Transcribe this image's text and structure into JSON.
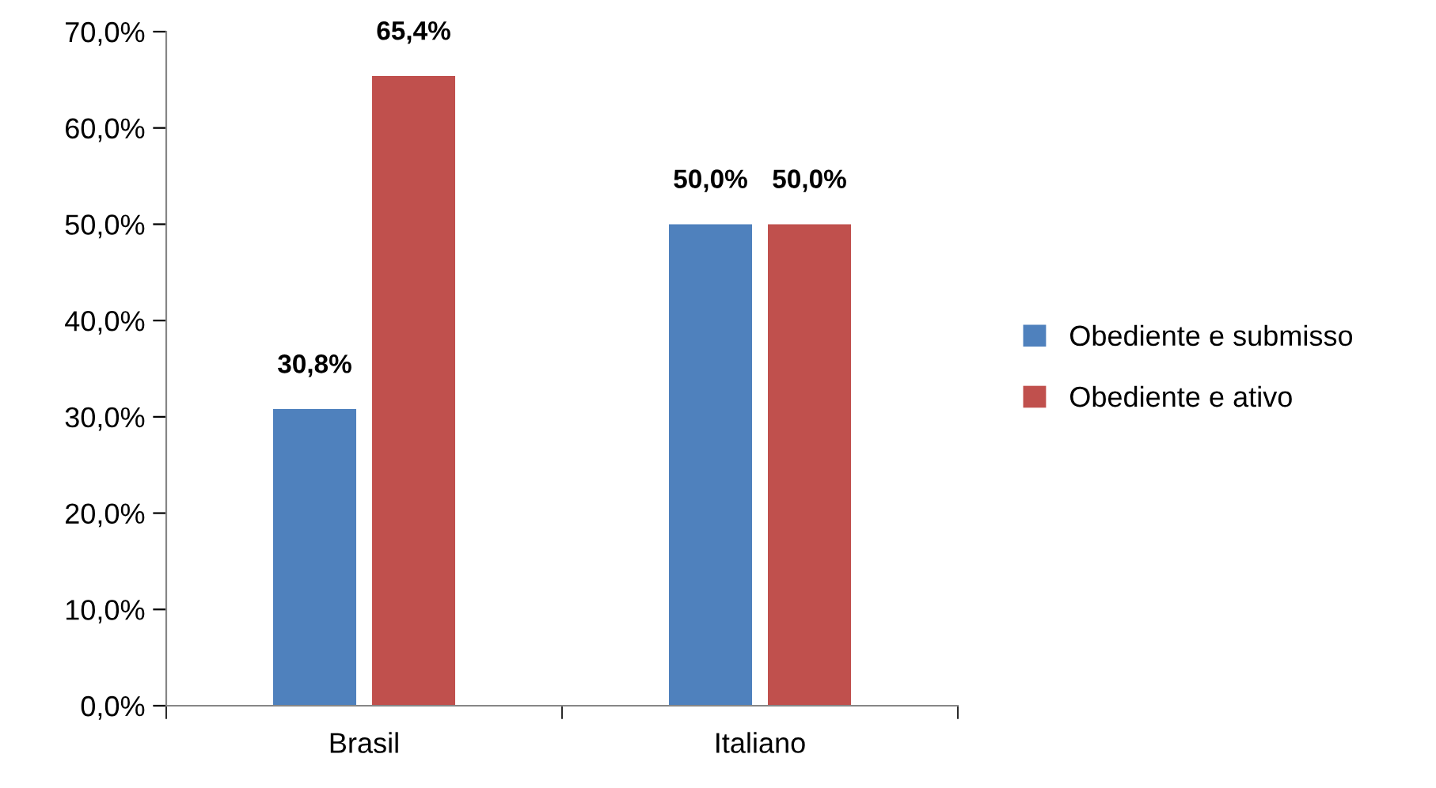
{
  "chart_data": {
    "type": "bar",
    "categories": [
      "Brasil",
      "Italiano"
    ],
    "series": [
      {
        "name": "Obediente e submisso",
        "color": "#4f81bd",
        "values": [
          30.8,
          50.0
        ],
        "value_labels": [
          "30,8%",
          "50,0%"
        ]
      },
      {
        "name": "Obediente e ativo",
        "color": "#c0504d",
        "values": [
          65.4,
          50.0
        ],
        "value_labels": [
          "65,4%",
          "50,0%"
        ]
      }
    ],
    "ylim": [
      0,
      70
    ],
    "yticks": [
      {
        "value": 0,
        "label": "0,0%"
      },
      {
        "value": 10,
        "label": "10,0%"
      },
      {
        "value": 20,
        "label": "20,0%"
      },
      {
        "value": 30,
        "label": "30,0%"
      },
      {
        "value": 40,
        "label": "40,0%"
      },
      {
        "value": 50,
        "label": "50,0%"
      },
      {
        "value": 60,
        "label": "60,0%"
      },
      {
        "value": 70,
        "label": "70,0%"
      }
    ],
    "grid": false,
    "legend": "right"
  }
}
